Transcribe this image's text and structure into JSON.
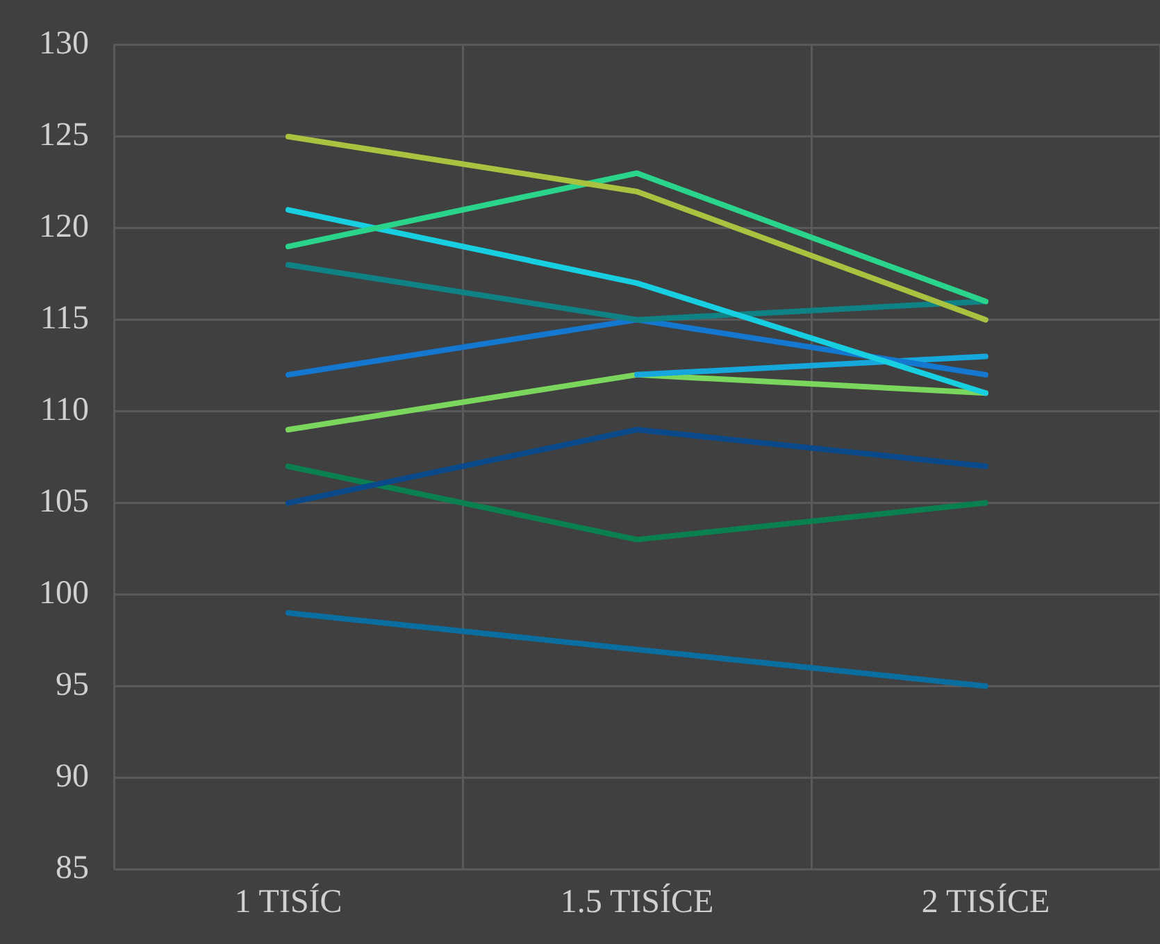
{
  "chart_data": {
    "type": "line",
    "categories": [
      "1 TISÍC",
      "1.5 TISÍCE",
      "2 TISÍCE"
    ],
    "series": [
      {
        "color": "#a9c23f",
        "values": [
          125,
          122,
          115
        ]
      },
      {
        "color": "#2ad48a",
        "values": [
          119,
          123,
          116
        ]
      },
      {
        "color": "#17cfe0",
        "values": [
          121,
          117,
          111
        ]
      },
      {
        "color": "#0f8286",
        "values": [
          118,
          115,
          116
        ]
      },
      {
        "color": "#1478d0",
        "values": [
          112,
          115,
          112
        ]
      },
      {
        "color": "#16a8dc",
        "values": [
          null,
          112,
          113
        ]
      },
      {
        "color": "#7bd65e",
        "values": [
          109,
          112,
          111
        ]
      },
      {
        "color": "#0b4a8a",
        "values": [
          105,
          109,
          107
        ]
      },
      {
        "color": "#0a8050",
        "values": [
          107,
          103,
          105
        ]
      },
      {
        "color": "#0a6ea0",
        "values": [
          99,
          97,
          95
        ]
      }
    ],
    "ylim": [
      85,
      130
    ],
    "yticks": [
      85,
      90,
      95,
      100,
      105,
      110,
      115,
      120,
      125,
      130
    ],
    "grid": true,
    "legend": false,
    "marker": "none",
    "line_style": "solid"
  }
}
